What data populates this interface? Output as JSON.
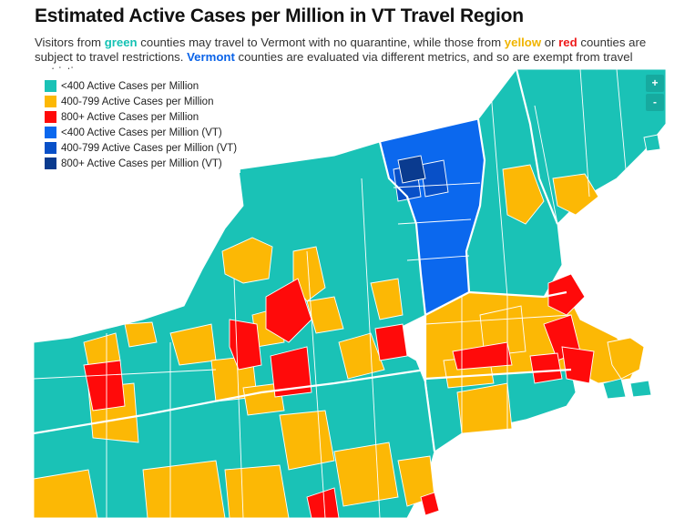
{
  "title": "Estimated Active Cases per Million in VT Travel Region",
  "subtitle": {
    "s1": "Visitors from ",
    "green_word": "green",
    "s2": " counties may travel to Vermont with no quarantine, while those from ",
    "yellow_word": "yellow",
    "s3": " or ",
    "red_word": "red",
    "s4": " counties are subject to travel restrictions. ",
    "vermont_word": "Vermont",
    "s5": " counties are evaluated via different metrics, and so are exempt from travel restrictions."
  },
  "legend": [
    {
      "label": "<400 Active Cases per Million",
      "color": "#1ac2b6"
    },
    {
      "label": "400-799 Active Cases per Million",
      "color": "#fcb805"
    },
    {
      "label": "800+ Active Cases per Million",
      "color": "#ff0a0a"
    },
    {
      "label": "<400 Active Cases per Million (VT)",
      "color": "#0b68ee"
    },
    {
      "label": "400-799 Active Cases per Million (VT)",
      "color": "#0850c8"
    },
    {
      "label": "800+ Active Cases per Million (VT)",
      "color": "#0a3b8f"
    }
  ],
  "zoom": {
    "in": "+",
    "out": "-"
  },
  "colors": {
    "green": "#1ac2b6",
    "yellow": "#fcb805",
    "red": "#ff0a0a",
    "vt_low": "#0b68ee",
    "vt_mid": "#0850c8",
    "vt_high": "#0a3b8f",
    "border": "#ffffff"
  }
}
